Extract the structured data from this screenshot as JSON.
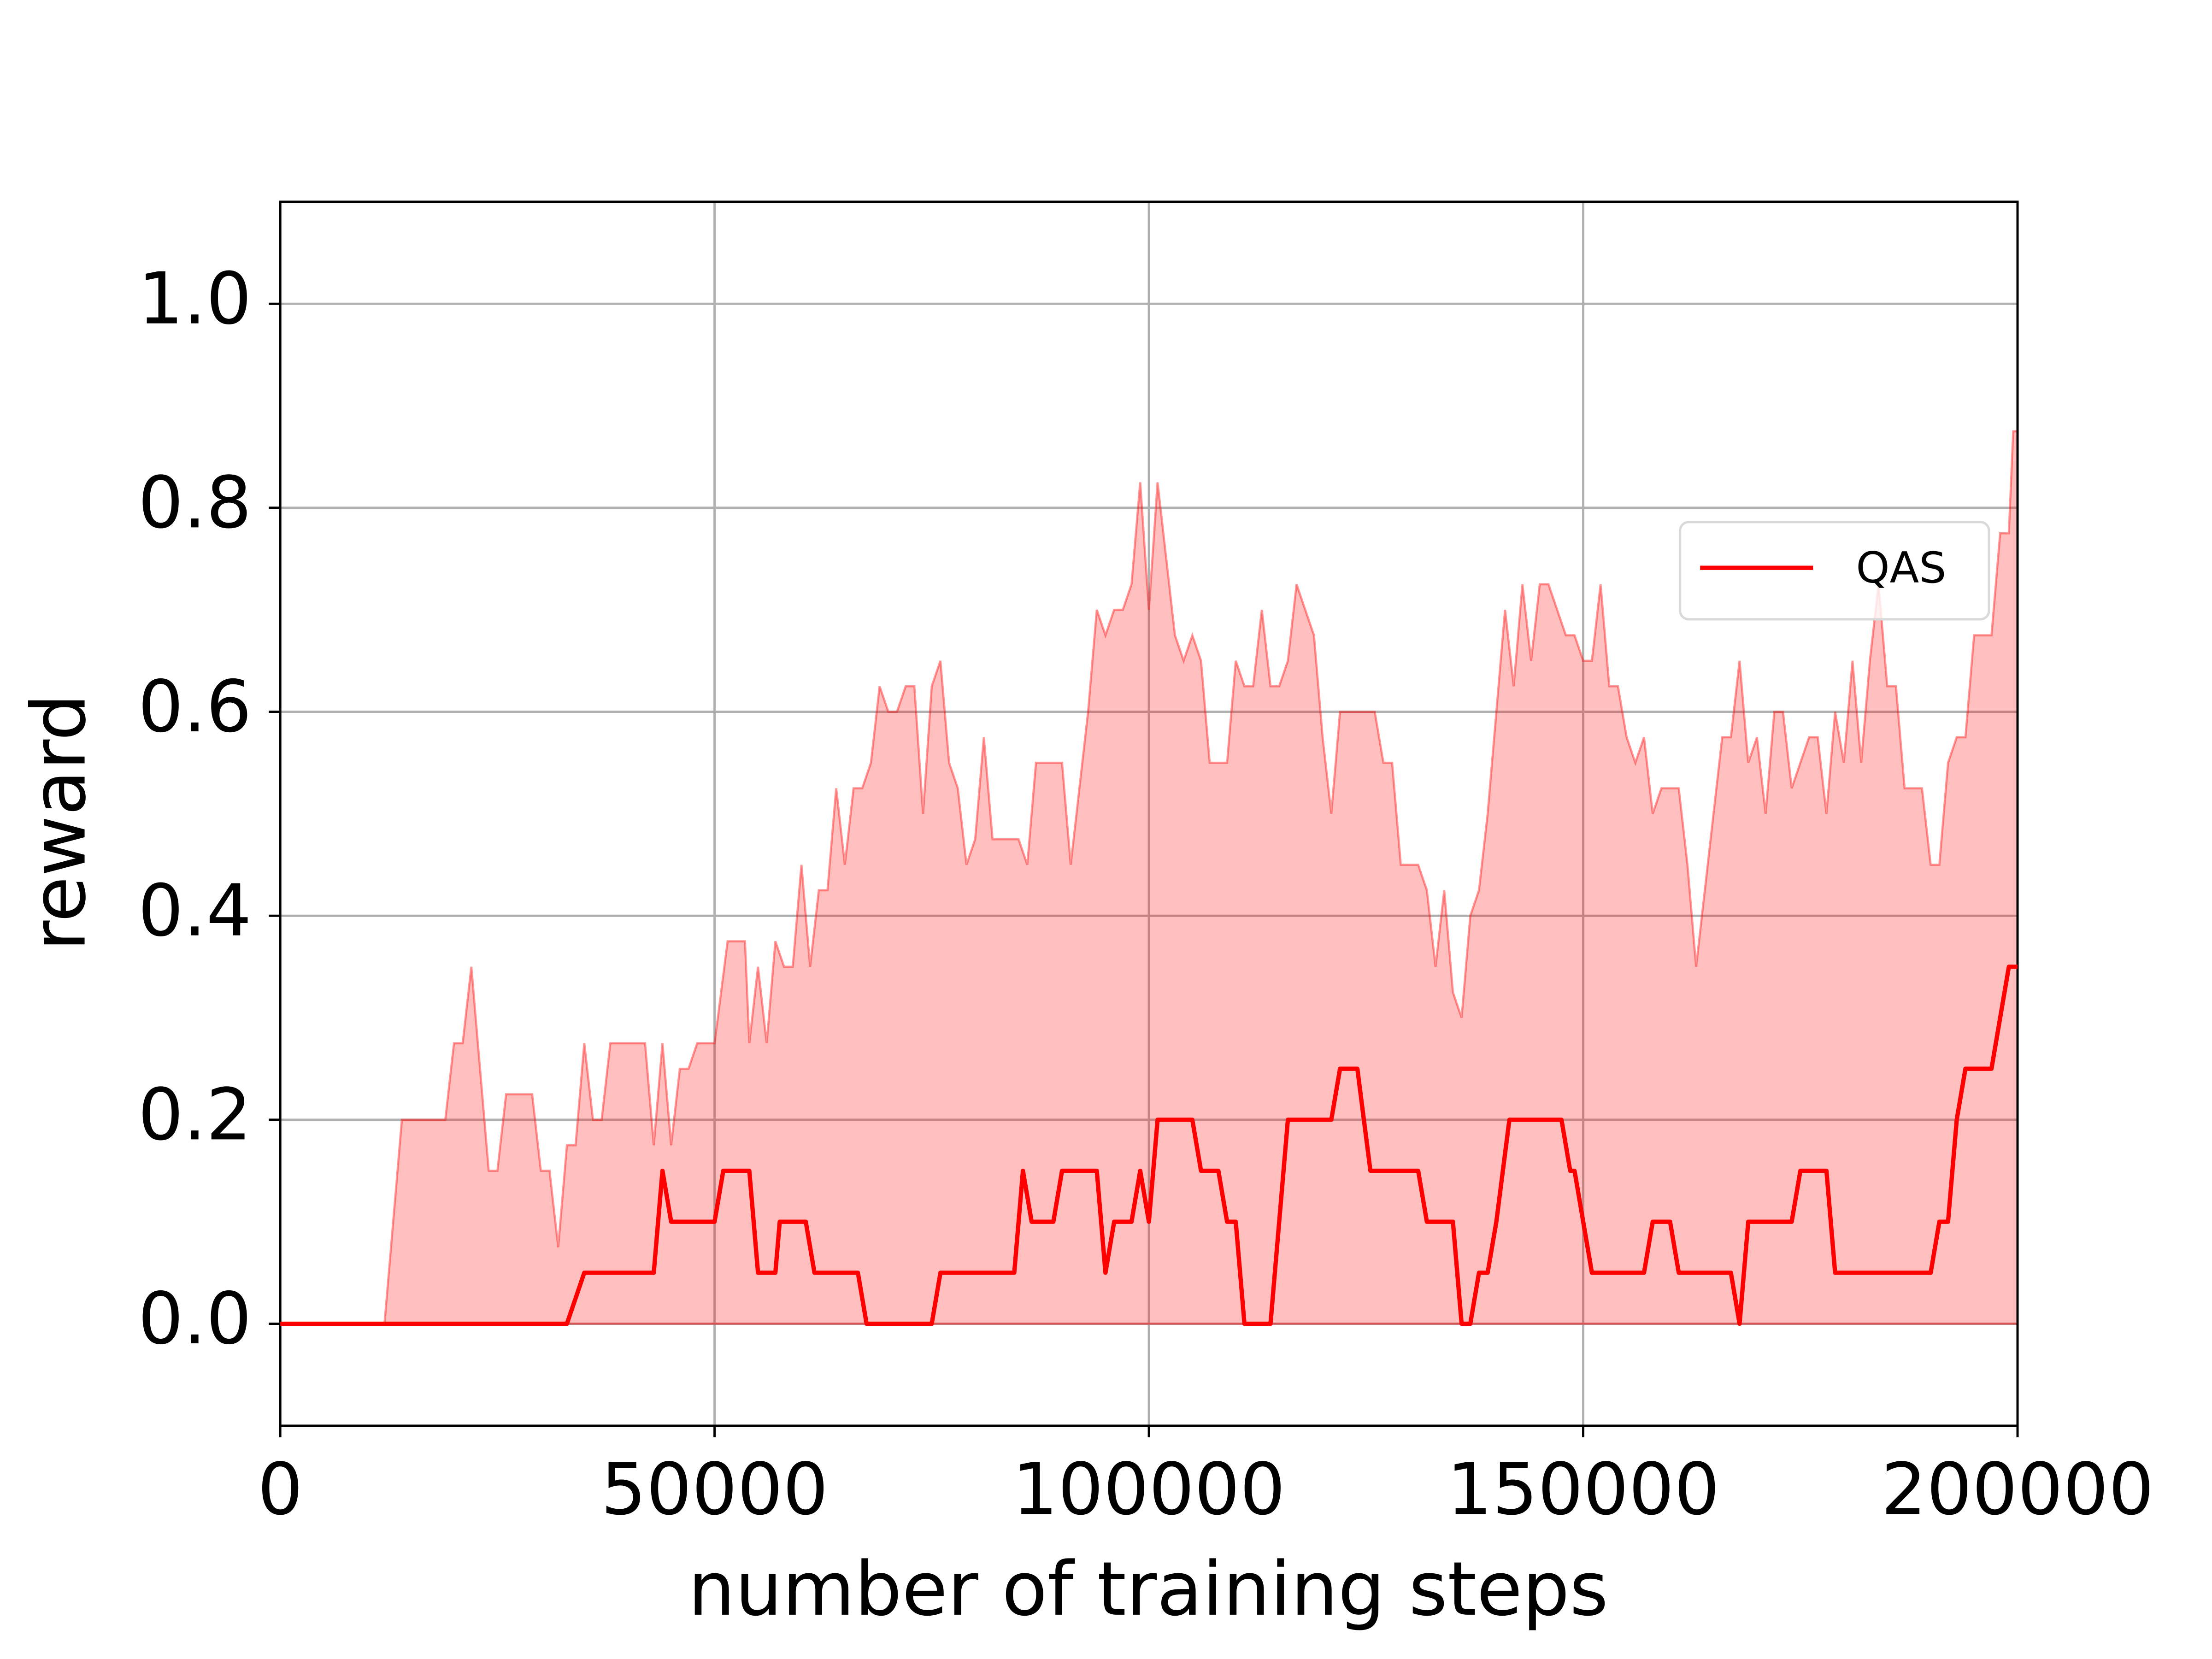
{
  "chart_data": {
    "type": "line",
    "xlabel": "number of training steps",
    "ylabel": "reward",
    "xlim": [
      0,
      200000
    ],
    "xticks": [
      0,
      50000,
      100000,
      150000,
      200000
    ],
    "ylim": [
      -0.1,
      1.1
    ],
    "yticks": [
      {
        "value": 0,
        "label": "0.0"
      },
      0.2,
      0.4,
      0.6,
      0.8,
      {
        "value": 1,
        "label": "1.0"
      }
    ],
    "grid": true,
    "legend": "center right",
    "series": [
      {
        "name": "QAS",
        "color": "#ff0000",
        "x": [
          0,
          33000,
          35000,
          43000,
          44000,
          45000,
          50000,
          51000,
          54000,
          55000,
          57000,
          57500,
          60500,
          61500,
          66500,
          67500,
          75000,
          76000,
          84500,
          85500,
          86500,
          89000,
          90000,
          94000,
          95000,
          96000,
          98000,
          99000,
          100000,
          101000,
          105000,
          106000,
          108000,
          109000,
          110000,
          111000,
          114000,
          116000,
          121000,
          122000,
          124000,
          125500,
          131000,
          132000,
          135000,
          136000,
          137000,
          138000,
          139000,
          140000,
          141500,
          147500,
          148500,
          149000,
          151000,
          157000,
          158000,
          160000,
          161000,
          167000,
          168000,
          169000,
          174000,
          175000,
          178000,
          179000,
          190000,
          191000,
          192000,
          193000,
          194000,
          197000,
          199000,
          200000
        ],
        "values": [
          0,
          0,
          0.05,
          0.05,
          0.15,
          0.1,
          0.1,
          0.15,
          0.15,
          0.05,
          0.05,
          0.1,
          0.1,
          0.05,
          0.05,
          0,
          0,
          0.05,
          0.05,
          0.15,
          0.1,
          0.1,
          0.15,
          0.15,
          0.05,
          0.1,
          0.1,
          0.15,
          0.1,
          0.2,
          0.2,
          0.15,
          0.15,
          0.1,
          0.1,
          0,
          0,
          0.2,
          0.2,
          0.25,
          0.25,
          0.15,
          0.15,
          0.1,
          0.1,
          0,
          0,
          0.05,
          0.05,
          0.1,
          0.2,
          0.2,
          0.15,
          0.15,
          0.05,
          0.05,
          0.1,
          0.1,
          0.05,
          0.05,
          0,
          0.1,
          0.1,
          0.15,
          0.15,
          0.05,
          0.05,
          0.1,
          0.1,
          0.2,
          0.25,
          0.25,
          0.35,
          0.35
        ]
      }
    ],
    "band": {
      "color": "#ff0000",
      "alpha": 0.25,
      "x": [
        0,
        12000,
        14000,
        19000,
        20000,
        21000,
        22000,
        24000,
        25000,
        26000,
        29000,
        30000,
        31000,
        32000,
        33000,
        34000,
        35000,
        36000,
        37000,
        38000,
        42000,
        43000,
        44000,
        45000,
        46000,
        47000,
        48000,
        50000,
        51500,
        53500,
        54000,
        55000,
        56000,
        57000,
        58000,
        59000,
        60000,
        61000,
        62000,
        63000,
        64000,
        65000,
        66000,
        67000,
        68000,
        69000,
        70000,
        71000,
        72000,
        73000,
        74000,
        75000,
        76000,
        77000,
        78000,
        79000,
        80000,
        81000,
        82000,
        85000,
        86000,
        87000,
        90000,
        91000,
        92000,
        93000,
        94000,
        95000,
        96000,
        97000,
        98000,
        99000,
        100000,
        101000,
        102000,
        103000,
        104000,
        105000,
        106000,
        107000,
        109000,
        110000,
        111000,
        112000,
        113000,
        114000,
        115000,
        116000,
        117000,
        118000,
        119000,
        120000,
        121000,
        122000,
        126000,
        127000,
        128000,
        129000,
        131000,
        132000,
        133000,
        134000,
        135000,
        136000,
        137000,
        138000,
        139000,
        140000,
        141000,
        142000,
        143000,
        144000,
        145000,
        146000,
        147000,
        148000,
        149000,
        150000,
        151000,
        152000,
        153000,
        154000,
        155000,
        156000,
        157000,
        158000,
        159000,
        161000,
        162000,
        163000,
        165000,
        166000,
        167000,
        168000,
        169000,
        170000,
        171000,
        172000,
        173000,
        174000,
        175000,
        176000,
        177000,
        178000,
        179000,
        180000,
        181000,
        182000,
        183000,
        184000,
        185000,
        186000,
        187000,
        189000,
        190000,
        191000,
        192000,
        193000,
        194000,
        195000,
        197000,
        198000,
        199000,
        199500,
        200000
      ],
      "values": [
        0,
        0,
        0.2,
        0.2,
        0.275,
        0.275,
        0.35,
        0.15,
        0.15,
        0.225,
        0.225,
        0.15,
        0.15,
        0.075,
        0.175,
        0.175,
        0.275,
        0.2,
        0.2,
        0.275,
        0.275,
        0.175,
        0.275,
        0.175,
        0.25,
        0.25,
        0.275,
        0.275,
        0.375,
        0.375,
        0.275,
        0.35,
        0.275,
        0.375,
        0.35,
        0.35,
        0.45,
        0.35,
        0.425,
        0.425,
        0.525,
        0.45,
        0.525,
        0.525,
        0.55,
        0.625,
        0.6,
        0.6,
        0.625,
        0.625,
        0.5,
        0.625,
        0.65,
        0.55,
        0.525,
        0.45,
        0.475,
        0.575,
        0.475,
        0.475,
        0.45,
        0.55,
        0.55,
        0.45,
        0.525,
        0.6,
        0.7,
        0.675,
        0.7,
        0.7,
        0.725,
        0.825,
        0.7,
        0.825,
        0.75,
        0.675,
        0.65,
        0.675,
        0.65,
        0.55,
        0.55,
        0.65,
        0.625,
        0.625,
        0.7,
        0.625,
        0.625,
        0.65,
        0.725,
        0.7,
        0.675,
        0.575,
        0.5,
        0.6,
        0.6,
        0.55,
        0.55,
        0.45,
        0.45,
        0.425,
        0.35,
        0.425,
        0.325,
        0.3,
        0.4,
        0.425,
        0.5,
        0.6,
        0.7,
        0.625,
        0.725,
        0.65,
        0.725,
        0.725,
        0.7,
        0.675,
        0.675,
        0.65,
        0.65,
        0.725,
        0.625,
        0.625,
        0.575,
        0.55,
        0.575,
        0.5,
        0.525,
        0.525,
        0.45,
        0.35,
        0.5,
        0.575,
        0.575,
        0.65,
        0.55,
        0.575,
        0.5,
        0.6,
        0.6,
        0.525,
        0.55,
        0.575,
        0.575,
        0.5,
        0.6,
        0.55,
        0.65,
        0.55,
        0.65,
        0.725,
        0.625,
        0.625,
        0.525,
        0.525,
        0.45,
        0.45,
        0.55,
        0.575,
        0.575,
        0.675,
        0.675,
        0.775,
        0.775,
        0.875,
        0.875
      ]
    }
  }
}
